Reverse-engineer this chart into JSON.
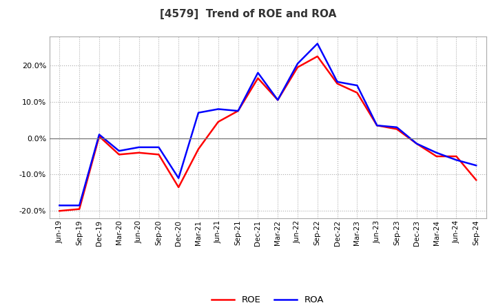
{
  "title": "[4579]  Trend of ROE and ROA",
  "x_labels": [
    "Jun-19",
    "Sep-19",
    "Dec-19",
    "Mar-20",
    "Jun-20",
    "Sep-20",
    "Dec-20",
    "Mar-21",
    "Jun-21",
    "Sep-21",
    "Dec-21",
    "Mar-22",
    "Jun-22",
    "Sep-22",
    "Dec-22",
    "Mar-23",
    "Jun-23",
    "Sep-23",
    "Dec-23",
    "Mar-24",
    "Jun-24",
    "Sep-24"
  ],
  "roe": [
    -20.0,
    -19.5,
    0.5,
    -4.5,
    -4.0,
    -4.5,
    -13.5,
    -3.0,
    4.5,
    7.5,
    16.5,
    10.5,
    19.5,
    22.5,
    15.0,
    12.5,
    3.5,
    2.5,
    -1.5,
    -5.0,
    -5.0,
    -11.5
  ],
  "roa": [
    -18.5,
    -18.5,
    1.0,
    -3.5,
    -2.5,
    -2.5,
    -11.0,
    7.0,
    8.0,
    7.5,
    18.0,
    10.5,
    20.5,
    26.0,
    15.5,
    14.5,
    3.5,
    3.0,
    -1.5,
    -4.0,
    -6.0,
    -7.5
  ],
  "roe_color": "#ff0000",
  "roa_color": "#0000ff",
  "background_color": "#ffffff",
  "plot_bg_color": "#ffffff",
  "grid_color": "#aaaaaa",
  "ylim": [
    -22,
    28
  ],
  "yticks": [
    -20,
    -10,
    0,
    10,
    20
  ],
  "title_fontsize": 11,
  "legend_labels": [
    "ROE",
    "ROA"
  ]
}
